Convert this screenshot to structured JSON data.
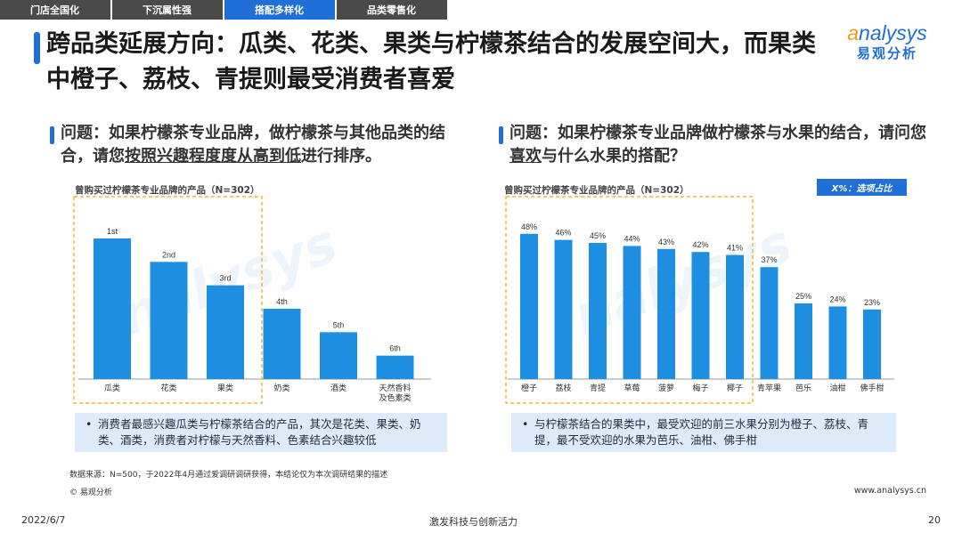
{
  "tabs": [
    "门店全国化",
    "下沉属性强",
    "搭配多样化",
    "品类零售化"
  ],
  "title": "跨品类延展方向：瓜类、花类、果类与柠檬茶结合的发展空间大，而果类中橙子、荔枝、青提则最受消费者喜爱",
  "logo": {
    "brand": "nalysys",
    "brand_initial": "a",
    "sub": "易观分析"
  },
  "left": {
    "question_prefix": "问题：如果柠檬茶专业品牌，做柠檬茶与其他品类的结合，请您",
    "question_emph": "按照兴趣程度度从高到低",
    "question_suffix": "进行排序。",
    "sample": "曾购买过柠檬茶专业品牌的产品（N=302）",
    "note": "消费者最感兴趣瓜类与柠檬茶结合的产品，其次是花类、果类、奶类、酒类，消费者对柠檬与天然香料、色素结合兴趣较低"
  },
  "right": {
    "question_prefix": "问题：如果柠檬茶专业品牌做柠檬茶与水果的结合，请问您",
    "question_emph": "喜欢",
    "question_suffix": "与什么水果的搭配？",
    "sample": "曾购买过柠檬茶专业品牌的产品（N=302）",
    "badge": "X%：选项占比",
    "note": "与柠檬茶结合的果类中，最受欢迎的前三水果分别为橙子、荔枝、青提，最不受欢迎的水果为芭乐、油柑、佛手柑"
  },
  "note_bullet": "•",
  "source": "数据来源：N=500，于2022年4月通过爱调研调研获得，本结论仅为本次调研结果的描述",
  "copyright": "© 易观分析",
  "website": "www.analysys.cn",
  "footer": {
    "date": "2022/6/7",
    "slogan": "激发科技与创新活力",
    "page": "20"
  },
  "colors": {
    "accent": "#1f6fd6",
    "bar": "#1e8fe0",
    "highlight_box": "#f2b53a",
    "note_bg": "#dceaf9"
  },
  "chart_data": [
    {
      "type": "bar",
      "categories": [
        "瓜类",
        "花类",
        "果类",
        "奶类",
        "酒类",
        "天然香料及色素类"
      ],
      "data_labels": [
        "1st",
        "2nd",
        "3rd",
        "4th",
        "5th",
        "6th"
      ],
      "values": [
        6,
        5,
        4,
        3,
        2,
        1
      ],
      "highlighted_categories": [
        "瓜类",
        "花类",
        "果类"
      ]
    },
    {
      "type": "bar",
      "categories": [
        "橙子",
        "荔枝",
        "青提",
        "草莓",
        "菠萝",
        "梅子",
        "椰子",
        "青苹果",
        "芭乐",
        "油柑",
        "佛手柑"
      ],
      "values": [
        48,
        46,
        45,
        44,
        43,
        42,
        41,
        37,
        25,
        24,
        23
      ],
      "unit": "%",
      "highlighted_categories": [
        "橙子",
        "荔枝",
        "青提",
        "草莓",
        "菠萝",
        "梅子",
        "椰子"
      ]
    }
  ]
}
